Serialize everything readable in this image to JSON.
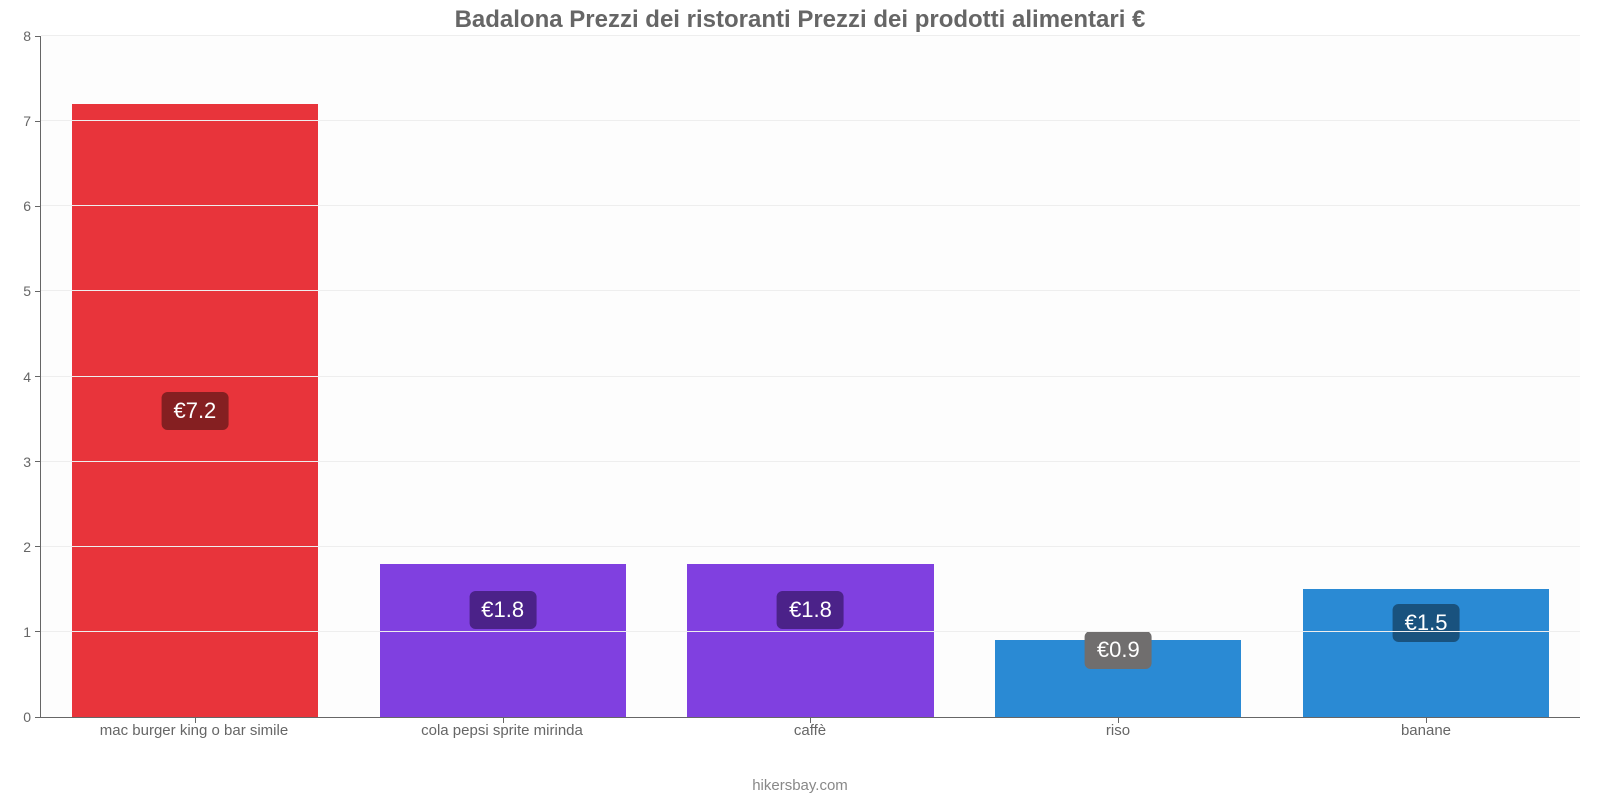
{
  "chart": {
    "type": "bar",
    "title": "Badalona Prezzi dei ristoranti Prezzi dei prodotti alimentari €",
    "title_fontsize": 24,
    "title_color": "#666666",
    "credit": "hikersbay.com",
    "credit_color": "#888888",
    "background_color": "#fdfdfd",
    "grid_color": "#eeeeee",
    "axis_color": "#666666",
    "tick_label_color": "#666666",
    "tick_label_fontsize": 14,
    "xlabel_fontsize": 15,
    "ylim": [
      0,
      8
    ],
    "ytick_step": 1,
    "yticks": [
      0,
      1,
      2,
      3,
      4,
      5,
      6,
      7,
      8
    ],
    "bar_width_pct": 80,
    "value_label_fontsize": 22,
    "value_label_text_color": "#ffffff",
    "categories": [
      "mac burger king o bar simile",
      "cola pepsi sprite mirinda",
      "caffè",
      "riso",
      "banane"
    ],
    "values": [
      7.2,
      1.8,
      1.8,
      0.9,
      1.5
    ],
    "value_labels": [
      "€7.2",
      "€1.8",
      "€1.8",
      "€0.9",
      "€1.5"
    ],
    "bar_colors": [
      "#e8343b",
      "#8040e0",
      "#8040e0",
      "#2a8ad4",
      "#2a8ad4"
    ],
    "value_badge_colors": [
      "#851f21",
      "#4b2289",
      "#4b2289",
      "#706e6e",
      "#19527e"
    ],
    "value_badge_bottom_pct": [
      50,
      70,
      70,
      88,
      74
    ]
  }
}
